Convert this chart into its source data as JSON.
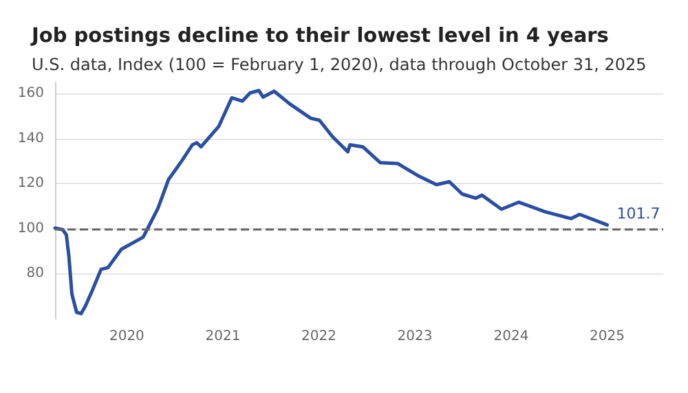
{
  "chart_data": {
    "type": "line",
    "title": "Job postings decline to their lowest level in 4 years",
    "subtitle": "U.S. data, Index (100 = February 1, 2020), data through October 31, 2025",
    "x": [
      "2020-02-01",
      "2020-03-01",
      "2020-03-15",
      "2020-03-25",
      "2020-04-05",
      "2020-04-23",
      "2020-05-10",
      "2020-05-26",
      "2020-06-22",
      "2020-07-25",
      "2020-08-20",
      "2020-10-10",
      "2020-11-21",
      "2021-01-01",
      "2021-01-10",
      "2021-02-26",
      "2021-04-07",
      "2021-05-27",
      "2021-07-07",
      "2021-07-24",
      "2021-08-09",
      "2021-10-15",
      "2021-12-04",
      "2022-01-13",
      "2022-02-12",
      "2022-03-17",
      "2022-04-02",
      "2022-05-14",
      "2022-07-12",
      "2022-09-30",
      "2022-11-02",
      "2022-12-22",
      "2023-02-18",
      "2023-02-26",
      "2023-04-16",
      "2023-06-21",
      "2023-08-26",
      "2023-11-16",
      "2024-01-21",
      "2024-03-10",
      "2024-04-28",
      "2024-06-18",
      "2024-07-12",
      "2024-09-24",
      "2024-11-29",
      "2025-03-08",
      "2025-06-15",
      "2025-07-18",
      "2025-10-31"
    ],
    "series": [
      {
        "color": "#2a4ea2",
        "values": [
          100.3,
          99.6,
          97.3,
          87.4,
          71,
          62.9,
          62.3,
          65.6,
          72.7,
          82,
          82.7,
          90.9,
          93.6,
          96.3,
          98.3,
          109,
          121.8,
          130,
          137.3,
          138.2,
          136.4,
          145.4,
          158.2,
          156.7,
          160.4,
          161.4,
          158.5,
          161.1,
          155.5,
          149.1,
          148.2,
          140.9,
          134.2,
          137.3,
          136.4,
          129.4,
          129,
          123.3,
          119.6,
          120.9,
          115.4,
          113.6,
          114.9,
          108.7,
          111.8,
          107.6,
          104.5,
          106.4,
          101.7
        ],
        "value_labels": [
          null,
          null,
          null,
          null,
          null,
          null,
          null,
          null,
          null,
          null,
          null,
          null,
          null,
          null,
          null,
          null,
          null,
          null,
          null,
          null,
          null,
          null,
          null,
          null,
          null,
          null,
          null,
          null,
          null,
          null,
          null,
          null,
          null,
          null,
          null,
          null,
          null,
          null,
          null,
          null,
          null,
          null,
          null,
          null,
          null,
          null,
          null,
          null,
          "101.7"
        ]
      }
    ],
    "xlim": [
      "2020-02-01",
      "2026-06-01"
    ],
    "xticks": [
      {
        "value": "2020-10-31",
        "label": "2020"
      },
      {
        "value": "2021-10-31",
        "label": "2021"
      },
      {
        "value": "2022-10-31",
        "label": "2022"
      },
      {
        "value": "2023-10-31",
        "label": "2023"
      },
      {
        "value": "2024-10-31",
        "label": "2024"
      },
      {
        "value": "2025-10-31",
        "label": "2025"
      }
    ],
    "ylim": [
      60,
      165
    ],
    "yticks": [
      80,
      100,
      120,
      140,
      160
    ],
    "ref_lines": [
      {
        "axis": "y",
        "value": 100,
        "color": "#666666",
        "line_style": "dashed"
      }
    ],
    "grid": "y",
    "marker": "none",
    "line_style": "solid"
  }
}
